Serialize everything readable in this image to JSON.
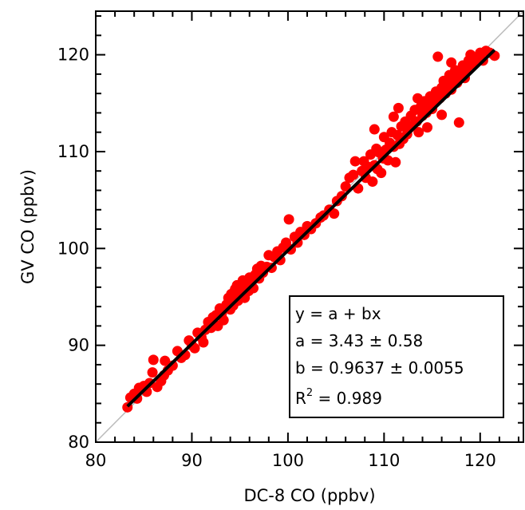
{
  "chart_data": {
    "type": "scatter",
    "title": "",
    "xlabel": "DC-8 CO (ppbv)",
    "ylabel": "GV CO (ppbv)",
    "xlim": [
      80,
      124.5
    ],
    "ylim": [
      80,
      124.5
    ],
    "xticks": [
      "80",
      "90",
      "100",
      "110",
      "120"
    ],
    "yticks": [
      "80",
      "90",
      "100",
      "110",
      "120"
    ],
    "grid": false,
    "colors": {
      "points": "#ff0000",
      "fit_line": "#000000",
      "one_to_one": "#bbbbbb"
    },
    "one_to_one_line": [
      [
        80,
        80
      ],
      [
        124.5,
        124.5
      ]
    ],
    "fit_line": {
      "x": [
        83.3,
        121.5
      ],
      "y": [
        83.7,
        120.5
      ]
    },
    "annotation": {
      "line1": "y = a + bx",
      "line2": "a = 3.43 ± 0.58",
      "line3": "b = 0.9637 ± 0.0055",
      "line4_prefix": "R",
      "line4_sup": "2",
      "line4_suffix": " = 0.989"
    },
    "series": [
      {
        "points": [
          [
            83.3,
            83.6
          ],
          [
            83.6,
            84.6
          ],
          [
            84.0,
            85.0
          ],
          [
            84.3,
            84.5
          ],
          [
            84.5,
            85.6
          ],
          [
            85.0,
            85.8
          ],
          [
            85.3,
            85.2
          ],
          [
            85.6,
            86.1
          ],
          [
            85.9,
            87.2
          ],
          [
            86.0,
            88.5
          ],
          [
            86.4,
            85.7
          ],
          [
            86.8,
            86.3
          ],
          [
            87.1,
            86.9
          ],
          [
            87.2,
            88.4
          ],
          [
            87.5,
            87.4
          ],
          [
            88.0,
            87.9
          ],
          [
            88.5,
            89.4
          ],
          [
            88.9,
            88.7
          ],
          [
            89.3,
            89.0
          ],
          [
            89.7,
            90.5
          ],
          [
            90.0,
            90.0
          ],
          [
            90.3,
            89.7
          ],
          [
            90.6,
            91.3
          ],
          [
            91.0,
            90.8
          ],
          [
            91.2,
            90.3
          ],
          [
            91.4,
            91.6
          ],
          [
            91.7,
            92.4
          ],
          [
            92.0,
            91.8
          ],
          [
            92.2,
            92.9
          ],
          [
            92.5,
            93.1
          ],
          [
            92.7,
            92.0
          ],
          [
            92.9,
            93.8
          ],
          [
            93.1,
            93.2
          ],
          [
            93.3,
            92.6
          ],
          [
            93.6,
            94.2
          ],
          [
            93.8,
            94.9
          ],
          [
            94.0,
            93.7
          ],
          [
            94.1,
            95.3
          ],
          [
            94.3,
            94.1
          ],
          [
            94.5,
            95.8
          ],
          [
            94.7,
            96.2
          ],
          [
            94.8,
            94.6
          ],
          [
            95.0,
            95.0
          ],
          [
            95.2,
            95.5
          ],
          [
            95.3,
            96.7
          ],
          [
            95.5,
            94.9
          ],
          [
            95.7,
            96.1
          ],
          [
            95.9,
            95.6
          ],
          [
            96.0,
            97.0
          ],
          [
            96.2,
            96.4
          ],
          [
            96.4,
            95.9
          ],
          [
            96.6,
            97.3
          ],
          [
            96.8,
            97.9
          ],
          [
            97.0,
            96.9
          ],
          [
            97.2,
            98.2
          ],
          [
            97.4,
            97.5
          ],
          [
            97.8,
            98.1
          ],
          [
            98.0,
            99.3
          ],
          [
            98.3,
            98.0
          ],
          [
            98.6,
            99.1
          ],
          [
            98.9,
            99.7
          ],
          [
            99.2,
            98.8
          ],
          [
            99.5,
            100.1
          ],
          [
            99.8,
            100.6
          ],
          [
            100.1,
            103.0
          ],
          [
            100.3,
            99.9
          ],
          [
            100.7,
            101.2
          ],
          [
            101.0,
            100.6
          ],
          [
            101.3,
            101.7
          ],
          [
            101.7,
            101.4
          ],
          [
            102.0,
            102.3
          ],
          [
            102.4,
            102.0
          ],
          [
            102.9,
            102.6
          ],
          [
            103.4,
            103.2
          ],
          [
            103.7,
            103.4
          ],
          [
            104.3,
            104.0
          ],
          [
            104.8,
            103.6
          ],
          [
            105.1,
            104.9
          ],
          [
            105.6,
            105.4
          ],
          [
            106.0,
            106.4
          ],
          [
            106.4,
            107.3
          ],
          [
            106.8,
            107.6
          ],
          [
            107.3,
            106.2
          ],
          [
            107.7,
            108.0
          ],
          [
            107.9,
            109.0
          ],
          [
            108.1,
            107.3
          ],
          [
            108.4,
            108.4
          ],
          [
            108.6,
            109.7
          ],
          [
            108.8,
            106.9
          ],
          [
            109.0,
            108.6
          ],
          [
            109.2,
            110.3
          ],
          [
            109.3,
            108.2
          ],
          [
            109.5,
            109.9
          ],
          [
            109.7,
            107.8
          ],
          [
            109.9,
            109.3
          ],
          [
            110.0,
            111.5
          ],
          [
            110.2,
            110.2
          ],
          [
            110.4,
            109.1
          ],
          [
            110.6,
            110.9
          ],
          [
            110.8,
            112.0
          ],
          [
            111.0,
            110.5
          ],
          [
            111.2,
            108.9
          ],
          [
            111.4,
            111.7
          ],
          [
            111.6,
            110.8
          ],
          [
            111.8,
            112.6
          ],
          [
            112.0,
            111.3
          ],
          [
            112.2,
            113.1
          ],
          [
            112.4,
            111.8
          ],
          [
            112.6,
            112.4
          ],
          [
            112.8,
            113.7
          ],
          [
            113.0,
            112.7
          ],
          [
            113.2,
            114.3
          ],
          [
            113.4,
            113.1
          ],
          [
            113.6,
            112.0
          ],
          [
            113.8,
            114.6
          ],
          [
            114.0,
            113.7
          ],
          [
            114.2,
            115.2
          ],
          [
            114.4,
            114.0
          ],
          [
            114.6,
            114.8
          ],
          [
            114.8,
            115.7
          ],
          [
            115.0,
            114.4
          ],
          [
            115.2,
            115.1
          ],
          [
            115.4,
            116.2
          ],
          [
            115.6,
            119.8
          ],
          [
            115.8,
            115.5
          ],
          [
            116.0,
            116.6
          ],
          [
            116.2,
            117.3
          ],
          [
            116.4,
            116.0
          ],
          [
            116.6,
            116.9
          ],
          [
            116.8,
            117.9
          ],
          [
            117.0,
            116.4
          ],
          [
            117.2,
            117.5
          ],
          [
            117.4,
            118.4
          ],
          [
            117.6,
            117.1
          ],
          [
            117.8,
            113.0
          ],
          [
            118.0,
            118.0
          ],
          [
            118.2,
            118.9
          ],
          [
            118.4,
            117.6
          ],
          [
            118.6,
            118.5
          ],
          [
            118.8,
            119.4
          ],
          [
            119.0,
            120.0
          ],
          [
            119.3,
            119.0
          ],
          [
            119.6,
            119.6
          ],
          [
            120.0,
            120.2
          ],
          [
            120.3,
            119.4
          ],
          [
            120.6,
            120.4
          ],
          [
            121.0,
            120.2
          ],
          [
            121.5,
            119.9
          ],
          [
            111.5,
            114.5
          ],
          [
            113.5,
            115.5
          ],
          [
            114.5,
            112.5
          ],
          [
            109.0,
            112.3
          ],
          [
            116.0,
            113.8
          ],
          [
            117.0,
            119.2
          ],
          [
            107.0,
            109.0
          ],
          [
            111.0,
            113.6
          ]
        ]
      }
    ]
  }
}
